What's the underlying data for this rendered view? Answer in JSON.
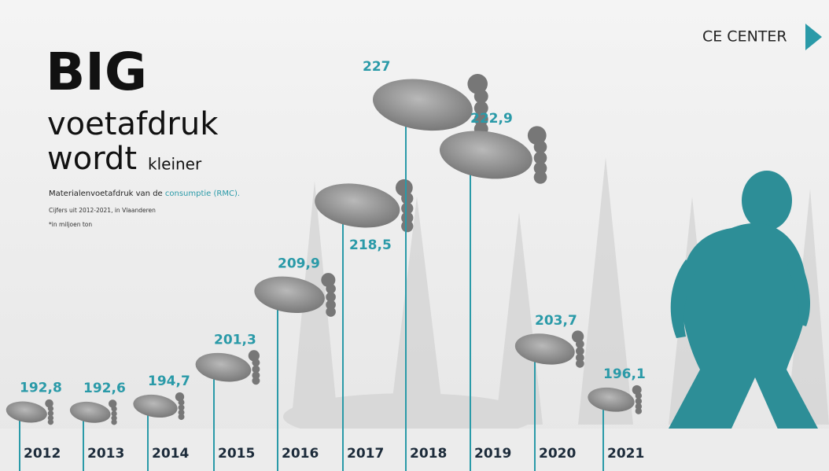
{
  "chart_data": {
    "type": "pictograph",
    "title": "BIG",
    "title_line2": "voetafdruk",
    "title_line3": "wordt",
    "title_small": "kleiner",
    "subtitle": "Materialenvoetafdruk van de",
    "subtitle_highlight": "consumptie (RMC).",
    "note": "Cijfers uit 2012-2021, in Vlaanderen",
    "unit_note": "*in miljoen ton",
    "logo": "CE CENTER",
    "categories": [
      "2012",
      "2013",
      "2014",
      "2015",
      "2016",
      "2017",
      "2018",
      "2019",
      "2020",
      "2021"
    ],
    "values": [
      192.8,
      192.6,
      194.7,
      201.3,
      209.9,
      218.5,
      227,
      222.9,
      203.7,
      196.1
    ],
    "value_labels": [
      "192,8",
      "192,6",
      "194,7",
      "201,3",
      "209,9",
      "218,5",
      "227",
      "222,9",
      "203,7",
      "196,1"
    ],
    "color": "#2a9aa8"
  }
}
